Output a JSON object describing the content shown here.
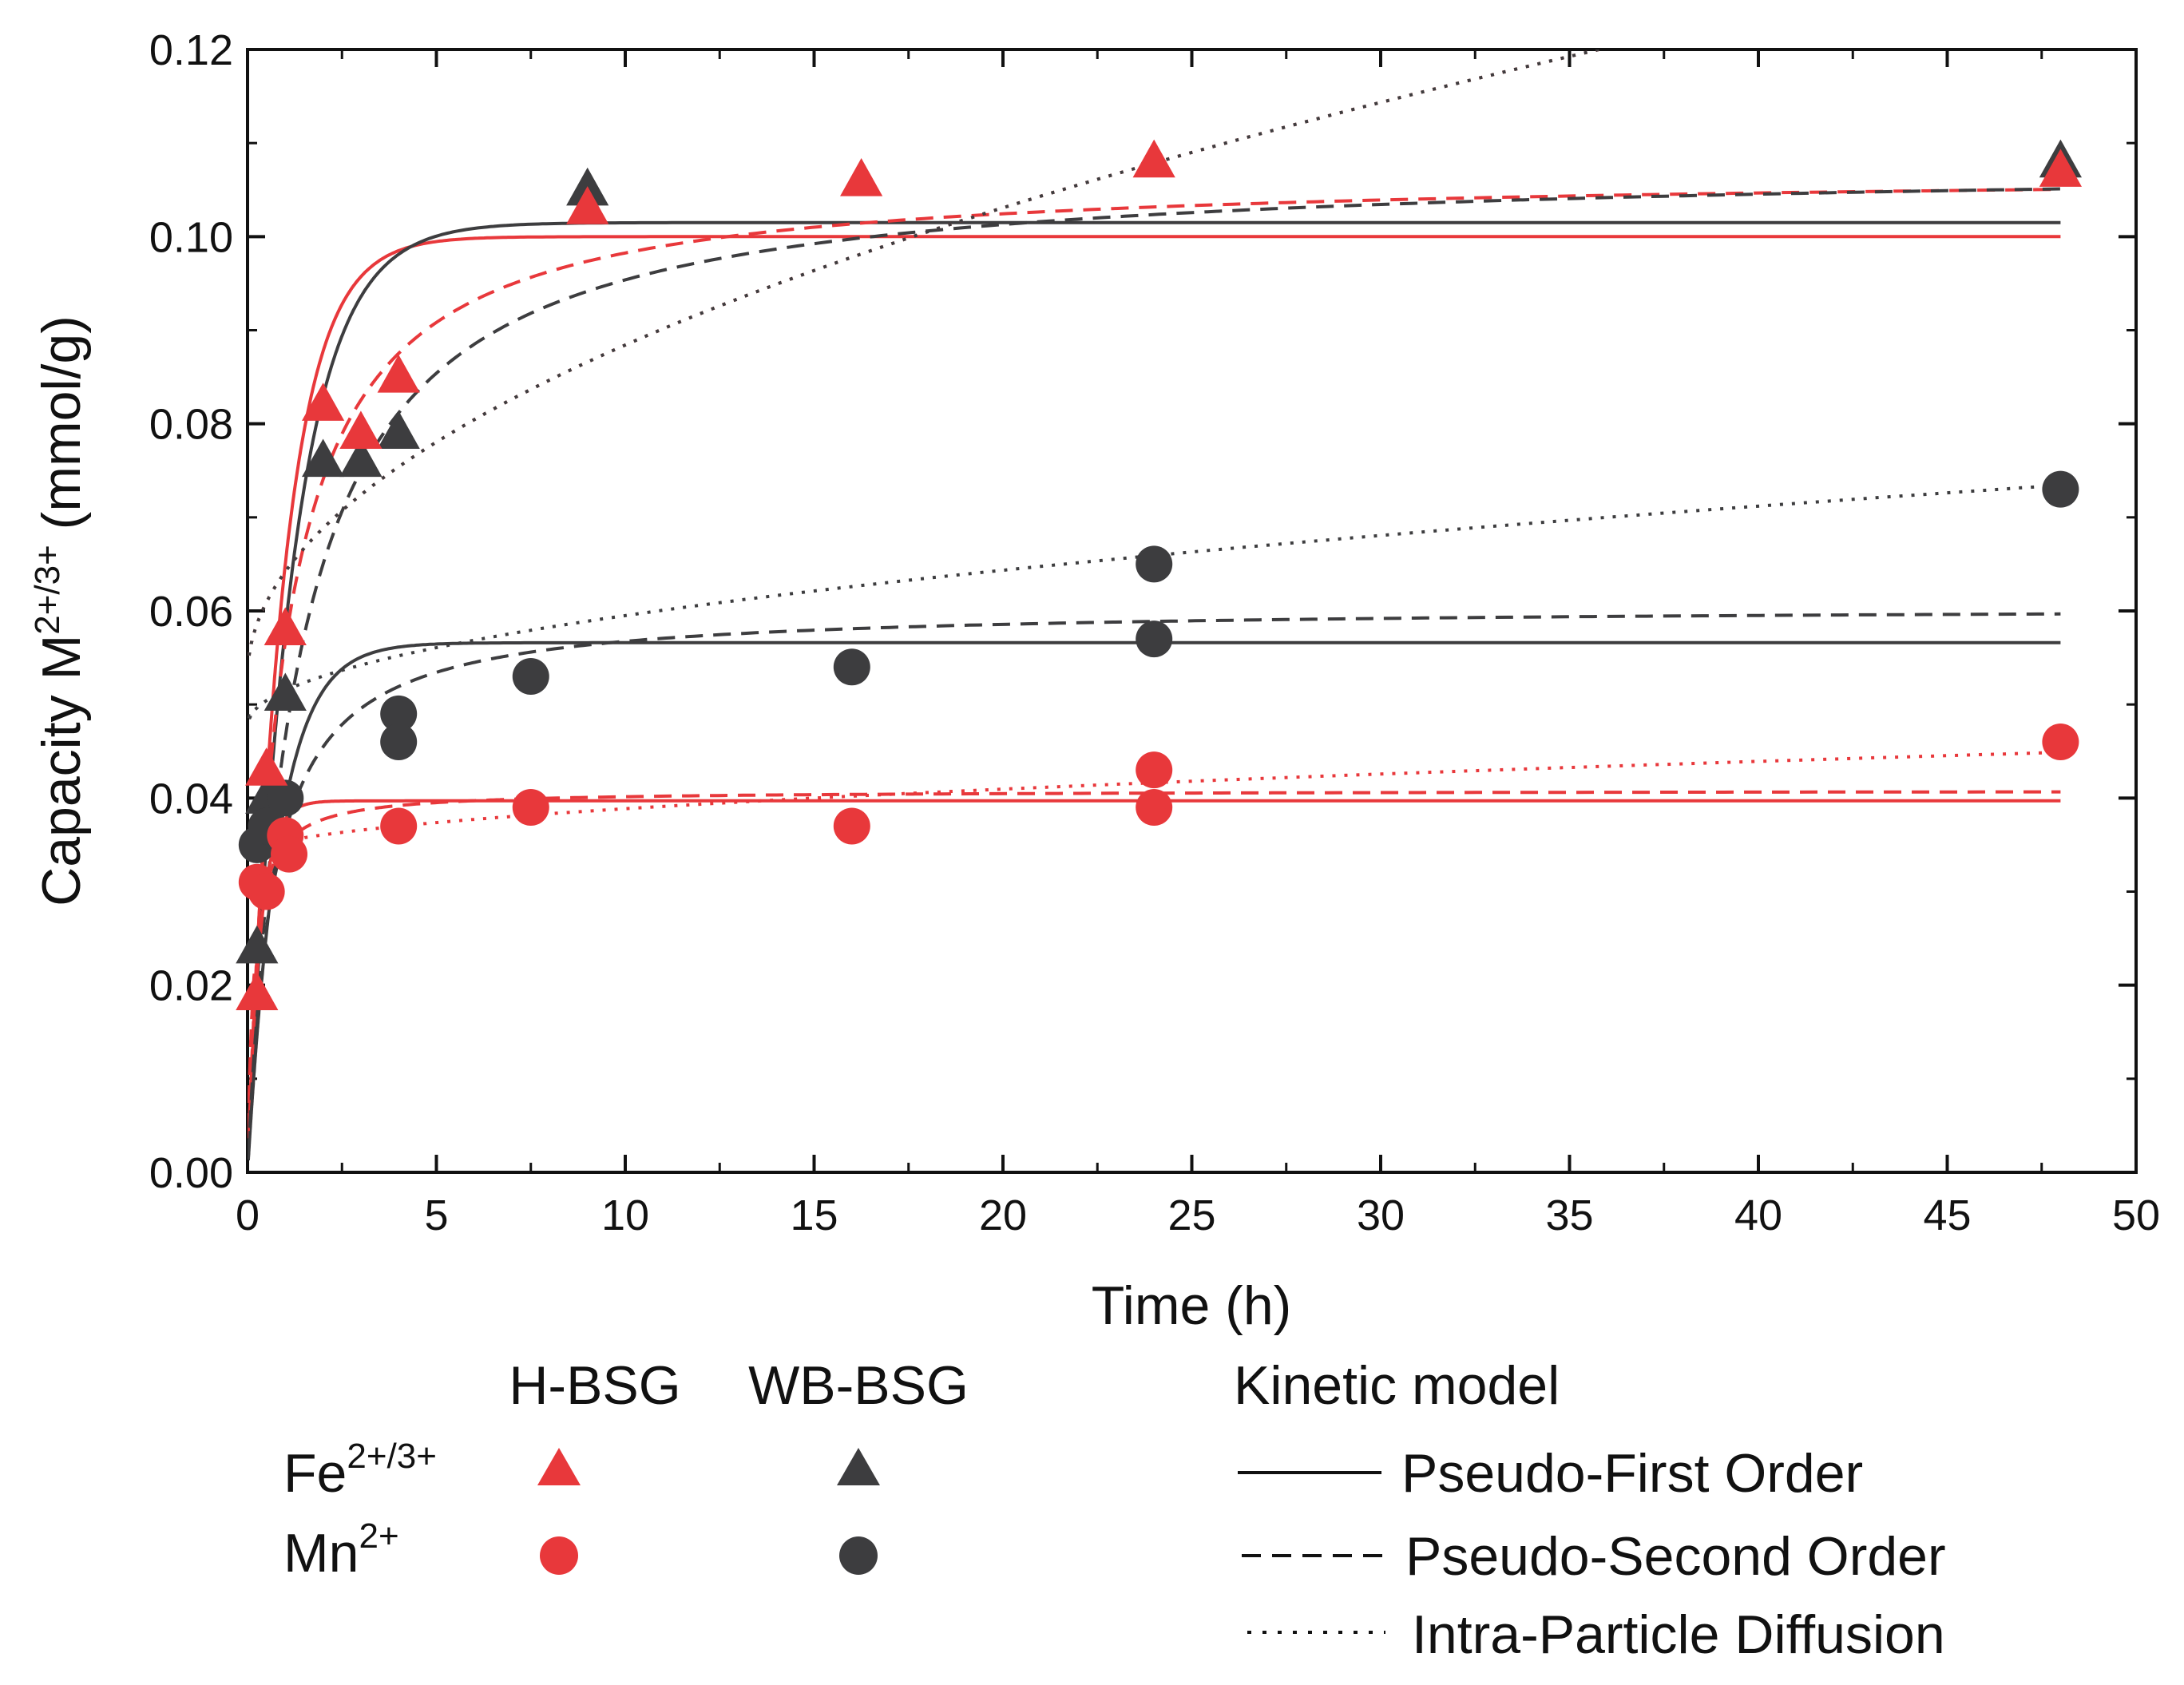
{
  "chart_data": {
    "type": "scatter",
    "xlabel": "Time (h)",
    "ylabel": {
      "base": "Capacity M",
      "sup": "2+/3+",
      "unit": " (mmol/g)"
    },
    "xlim": [
      0,
      50
    ],
    "ylim": [
      0,
      0.12
    ],
    "xticks": [
      "0",
      "5",
      "10",
      "15",
      "20",
      "25",
      "30",
      "35",
      "40",
      "45",
      "50"
    ],
    "yticks": [
      "0.00",
      "0.02",
      "0.04",
      "0.06",
      "0.08",
      "0.10",
      "0.12"
    ],
    "colors": {
      "H-BSG": "#e8383b",
      "WB-BSG": "#3d3d3f"
    },
    "series": [
      {
        "name": "Fe H-BSG",
        "group": "H-BSG",
        "ion": "Fe",
        "marker": "triangle",
        "x": [
          0.25,
          0.5,
          1,
          2,
          3,
          4,
          9,
          16.25,
          24,
          48
        ],
        "y": [
          0.019,
          0.043,
          0.058,
          0.082,
          0.079,
          0.085,
          0.103,
          0.106,
          0.108,
          0.107
        ]
      },
      {
        "name": "Fe WB-BSG",
        "group": "WB-BSG",
        "ion": "Fe",
        "marker": "triangle",
        "x": [
          0.25,
          0.5,
          1,
          2,
          3,
          4,
          9,
          48
        ],
        "y": [
          0.024,
          0.04,
          0.051,
          0.076,
          0.076,
          0.079,
          0.105,
          0.108
        ]
      },
      {
        "name": "Mn H-BSG",
        "group": "H-BSG",
        "ion": "Mn",
        "marker": "circle",
        "x": [
          0.25,
          0.5,
          1,
          1.1,
          4,
          7.5,
          16,
          24,
          24,
          48
        ],
        "y": [
          0.031,
          0.03,
          0.036,
          0.034,
          0.037,
          0.039,
          0.037,
          0.043,
          0.039,
          0.046
        ]
      },
      {
        "name": "Mn WB-BSG",
        "group": "WB-BSG",
        "ion": "Mn",
        "marker": "circle",
        "x": [
          0.25,
          0.5,
          1,
          4,
          4,
          7.5,
          16,
          24,
          24,
          48
        ],
        "y": [
          0.035,
          0.037,
          0.04,
          0.049,
          0.046,
          0.053,
          0.054,
          0.065,
          0.057,
          0.073
        ]
      }
    ],
    "model_fits": [
      {
        "name": "Fe H-BSG PFO",
        "group": "H-BSG",
        "model": "Pseudo-First Order",
        "qe": 0.1,
        "k1": 1.05
      },
      {
        "name": "Fe WB-BSG PFO",
        "group": "WB-BSG",
        "model": "Pseudo-First Order",
        "qe": 0.1015,
        "k1": 0.85
      },
      {
        "name": "Fe H-BSG PSO",
        "group": "H-BSG",
        "model": "Pseudo-Second Order",
        "qe": 0.107,
        "k2": 10.5
      },
      {
        "name": "Fe WB-BSG PSO",
        "group": "WB-BSG",
        "model": "Pseudo-Second Order",
        "qe": 0.108,
        "k2": 7.0
      },
      {
        "name": "Fe H-BSG IPD",
        "group": "H-BSG",
        "model": "Intra-Particle Diffusion",
        "kid": 0.0112,
        "c": 0.053
      },
      {
        "name": "Fe WB-BSG IPD",
        "group": "WB-BSG",
        "model": "Intra-Particle Diffusion",
        "kid": 0.0112,
        "c": 0.053
      },
      {
        "name": "Mn H-BSG PFO",
        "group": "H-BSG",
        "model": "Pseudo-First Order",
        "qe": 0.0397,
        "k1": 3.0
      },
      {
        "name": "Mn WB-BSG PFO",
        "group": "WB-BSG",
        "model": "Pseudo-First Order",
        "qe": 0.0566,
        "k1": 1.2
      },
      {
        "name": "Mn H-BSG PSO",
        "group": "H-BSG",
        "model": "Pseudo-Second Order",
        "qe": 0.0408,
        "k2": 150
      },
      {
        "name": "Mn WB-BSG PSO",
        "group": "WB-BSG",
        "model": "Pseudo-Second Order",
        "qe": 0.0605,
        "k2": 25
      },
      {
        "name": "Mn H-BSG IPD",
        "group": "H-BSG",
        "model": "Intra-Particle Diffusion",
        "kid": 0.0016,
        "c": 0.0338
      },
      {
        "name": "Mn WB-BSG IPD",
        "group": "WB-BSG",
        "model": "Intra-Particle Diffusion",
        "kid": 0.0037,
        "c": 0.0478
      }
    ]
  },
  "legend": {
    "col1": "H-BSG",
    "col2": "WB-BSG",
    "fe_base": "Fe",
    "fe_sup": "2+/3+",
    "mn_base": "Mn",
    "mn_sup": "2+",
    "kinetic_title": "Kinetic model",
    "pfo": "Pseudo-First Order",
    "pso": "Pseudo-Second Order",
    "ipd": "Intra-Particle Diffusion"
  }
}
